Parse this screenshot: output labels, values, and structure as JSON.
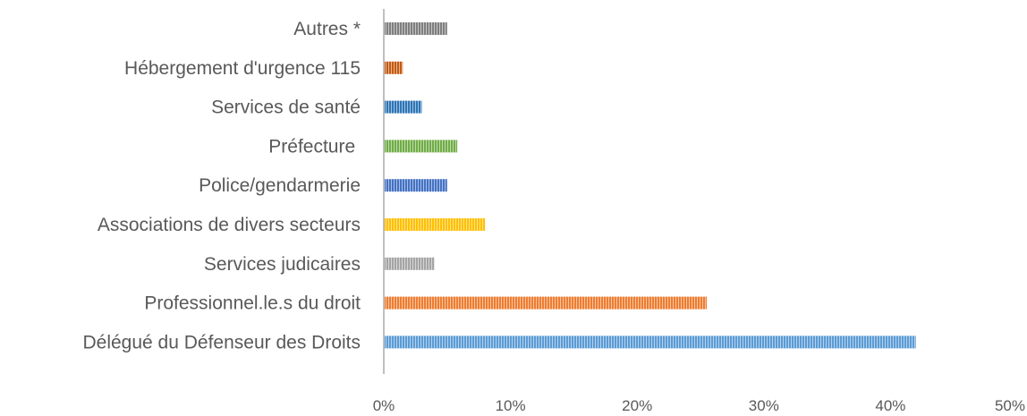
{
  "chart_data": {
    "type": "bar",
    "orientation": "horizontal",
    "categories": [
      "Autres *",
      "Hébergement d'urgence 115",
      "Services de santé",
      "Préfecture ",
      "Police/gendarmerie",
      "Associations de divers secteurs",
      "Services judicaires",
      "Professionnel.le.s du droit",
      "Délégué du Défenseur des Droits"
    ],
    "values": [
      5,
      1.5,
      3,
      5.8,
      5,
      8,
      4,
      25.5,
      42
    ],
    "colors": [
      "#7f7f7f",
      "#c55a11",
      "#2e75b6",
      "#70ad47",
      "#4472c4",
      "#ffc000",
      "#a5a5a5",
      "#ed7d31",
      "#5b9bd5"
    ],
    "xlim": [
      0,
      50
    ],
    "xticks": [
      0,
      10,
      20,
      30,
      40,
      50
    ],
    "xtick_labels": [
      "0%",
      "10%",
      "20%",
      "30%",
      "40%",
      "50%"
    ],
    "grid": false,
    "bar_pattern": "vertical-stripes"
  }
}
